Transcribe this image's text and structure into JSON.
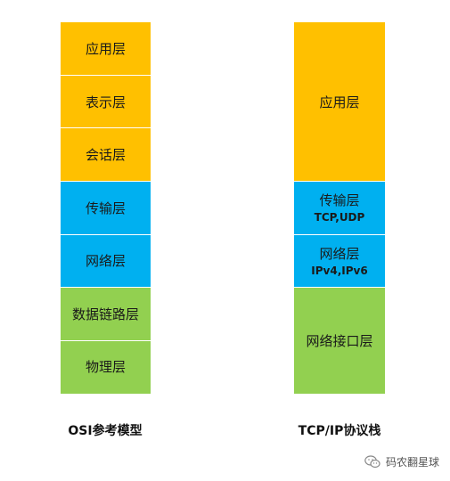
{
  "osi": {
    "title": "OSI参考模型",
    "layers": [
      {
        "name": "应用层",
        "color": "#FFC000"
      },
      {
        "name": "表示层",
        "color": "#FFC000"
      },
      {
        "name": "会话层",
        "color": "#FFC000"
      },
      {
        "name": "传输层",
        "color": "#00B0F0"
      },
      {
        "name": "网络层",
        "color": "#00B0F0"
      },
      {
        "name": "数据链路层",
        "color": "#92D050"
      },
      {
        "name": "物理层",
        "color": "#92D050"
      }
    ]
  },
  "tcpip": {
    "title": "TCP/IP协议栈",
    "layers": [
      {
        "name": "应用层",
        "protocols": "",
        "color": "#FFC000"
      },
      {
        "name": "传输层",
        "protocols": "TCP,UDP",
        "color": "#00B0F0"
      },
      {
        "name": "网络层",
        "protocols": "IPv4,IPv6",
        "color": "#00B0F0"
      },
      {
        "name": "网络接口层",
        "protocols": "",
        "color": "#92D050"
      }
    ]
  },
  "watermark": {
    "text": "码农翻星球",
    "icon": "wechat-icon"
  }
}
